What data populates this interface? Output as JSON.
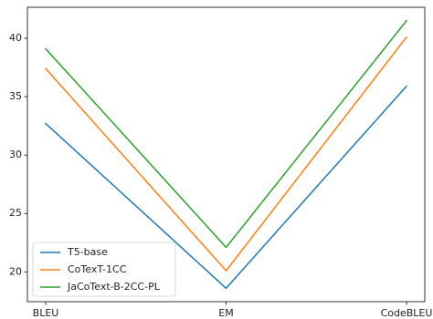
{
  "chart_data": {
    "type": "line",
    "categories": [
      "BLEU",
      "EM",
      "CodeBLEU"
    ],
    "series": [
      {
        "name": "T5-base",
        "color": "#1f77b4",
        "values": [
          32.7,
          18.6,
          35.9
        ]
      },
      {
        "name": "CoTexT-1CC",
        "color": "#ff7f0e",
        "values": [
          37.4,
          20.1,
          40.1
        ]
      },
      {
        "name": "JaCoText-B-2CC-PL",
        "color": "#2ca02c",
        "values": [
          39.1,
          22.1,
          41.5
        ]
      }
    ],
    "yticks": [
      20,
      25,
      30,
      35,
      40
    ],
    "ylim": [
      17.45,
      42.65
    ],
    "legend_position": "lower-left",
    "grid": false
  }
}
